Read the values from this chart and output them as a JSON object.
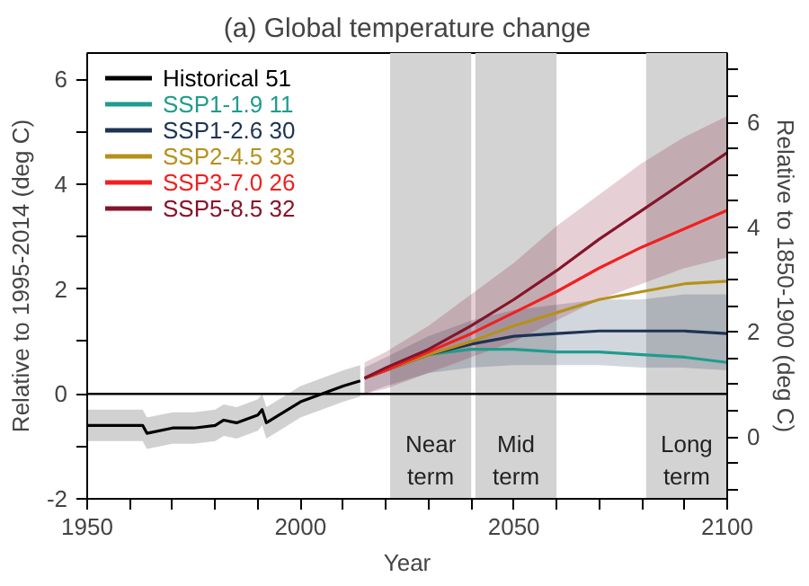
{
  "chart_data": {
    "type": "line",
    "title": "(a) Global temperature change",
    "xlabel": "Year",
    "ylabel": "Relative to 1995-2014 (deg C)",
    "y2label": "Relative to 1850-1900 (deg C)",
    "xlim": [
      1950,
      2100
    ],
    "xticks": [
      1950,
      {
        "value": 1960,
        "label": null
      },
      {
        "value": 1970,
        "label": null
      },
      {
        "value": 1980,
        "label": null
      },
      {
        "value": 1990,
        "label": null
      },
      2000,
      {
        "value": 2010,
        "label": null
      },
      {
        "value": 2020,
        "label": null
      },
      {
        "value": 2030,
        "label": null
      },
      {
        "value": 2040,
        "label": null
      },
      2050,
      {
        "value": 2060,
        "label": null
      },
      {
        "value": 2070,
        "label": null
      },
      {
        "value": 2080,
        "label": null
      },
      {
        "value": 2090,
        "label": null
      },
      2100
    ],
    "ylim": [
      -2,
      6.5
    ],
    "yticks": [
      -2,
      {
        "value": -1,
        "label": null
      },
      0,
      {
        "value": 1,
        "label": null
      },
      2,
      {
        "value": 3,
        "label": null
      },
      4,
      {
        "value": 5,
        "label": null
      },
      6
    ],
    "y2lim": [
      -1.18,
      7.32
    ],
    "y2ticks": [
      {
        "value": -1,
        "label": null
      },
      {
        "value": -0.5,
        "label": null
      },
      0,
      {
        "value": 0.5,
        "label": null
      },
      {
        "value": 1,
        "label": null
      },
      {
        "value": 1.5,
        "label": null
      },
      2,
      {
        "value": 2.5,
        "label": null
      },
      {
        "value": 3,
        "label": null
      },
      {
        "value": 3.5,
        "label": null
      },
      4,
      {
        "value": 4.5,
        "label": null
      },
      {
        "value": 5,
        "label": null
      },
      {
        "value": 5.5,
        "label": null
      },
      6,
      {
        "value": 6.5,
        "label": null
      },
      {
        "value": 7,
        "label": null
      }
    ],
    "grid": false,
    "legend": "top left",
    "line_style": "solid",
    "marker": "none",
    "ref_lines": [
      {
        "axis": "y",
        "value": 0,
        "label": null,
        "color": "#000000"
      }
    ],
    "bands": [
      {
        "axis": "x",
        "from": 2021,
        "to": 2040,
        "label": "Near\nterm",
        "color": "#d3d3d3"
      },
      {
        "axis": "x",
        "from": 2041,
        "to": 2060,
        "label": "Mid\nterm",
        "color": "#d3d3d3"
      },
      {
        "axis": "x",
        "from": 2081,
        "to": 2100,
        "label": "Long\nterm",
        "color": "#d3d3d3"
      }
    ],
    "series": [
      {
        "name": "Historical 51",
        "color": "#000000",
        "x": [
          1950,
          1955,
          1960,
          1963,
          1964,
          1970,
          1975,
          1980,
          1982,
          1985,
          1990,
          1991,
          1992,
          1995,
          2000,
          2005,
          2010,
          2014
        ],
        "values": [
          -0.6,
          -0.6,
          -0.6,
          -0.6,
          -0.75,
          -0.65,
          -0.65,
          -0.6,
          -0.5,
          -0.55,
          -0.4,
          -0.3,
          -0.55,
          -0.4,
          -0.15,
          0.0,
          0.15,
          0.25
        ],
        "lower": [
          -0.9,
          -0.9,
          -0.9,
          -0.9,
          -1.05,
          -0.95,
          -0.95,
          -0.9,
          -0.8,
          -0.85,
          -0.7,
          -0.6,
          -0.85,
          -0.7,
          -0.45,
          -0.3,
          -0.15,
          -0.05
        ],
        "upper": [
          -0.3,
          -0.3,
          -0.3,
          -0.3,
          -0.45,
          -0.35,
          -0.35,
          -0.3,
          -0.2,
          -0.25,
          -0.1,
          0.0,
          -0.25,
          -0.1,
          0.15,
          0.3,
          0.45,
          0.55
        ]
      },
      {
        "name": "SSP1-1.9 11",
        "color": "#1f9c8c",
        "x": [
          2015,
          2020,
          2030,
          2040,
          2050,
          2060,
          2070,
          2080,
          2090,
          2100
        ],
        "values": [
          0.3,
          0.45,
          0.75,
          0.85,
          0.85,
          0.8,
          0.8,
          0.75,
          0.7,
          0.6
        ]
      },
      {
        "name": "SSP1-2.6 30",
        "color": "#1d3354",
        "x": [
          2015,
          2020,
          2030,
          2040,
          2050,
          2060,
          2070,
          2080,
          2090,
          2100
        ],
        "values": [
          0.3,
          0.45,
          0.75,
          0.95,
          1.1,
          1.15,
          1.2,
          1.2,
          1.2,
          1.15
        ],
        "lower": [
          0.0,
          0.15,
          0.4,
          0.5,
          0.55,
          0.55,
          0.55,
          0.5,
          0.5,
          0.45
        ],
        "upper": [
          0.5,
          0.7,
          1.1,
          1.4,
          1.6,
          1.7,
          1.8,
          1.8,
          1.9,
          1.9
        ]
      },
      {
        "name": "SSP2-4.5 33",
        "color": "#b5911a",
        "x": [
          2015,
          2020,
          2030,
          2040,
          2050,
          2060,
          2070,
          2080,
          2090,
          2100
        ],
        "values": [
          0.3,
          0.45,
          0.75,
          1.0,
          1.3,
          1.55,
          1.8,
          1.95,
          2.1,
          2.15
        ]
      },
      {
        "name": "SSP3-7.0 26",
        "color": "#f02020",
        "x": [
          2015,
          2020,
          2030,
          2040,
          2050,
          2060,
          2070,
          2080,
          2090,
          2100
        ],
        "values": [
          0.3,
          0.45,
          0.8,
          1.15,
          1.55,
          1.95,
          2.4,
          2.8,
          3.15,
          3.5
        ]
      },
      {
        "name": "SSP5-8.5 32",
        "color": "#85142b",
        "x": [
          2015,
          2020,
          2030,
          2040,
          2050,
          2060,
          2070,
          2080,
          2090,
          2100
        ],
        "values": [
          0.3,
          0.5,
          0.85,
          1.3,
          1.8,
          2.35,
          2.95,
          3.5,
          4.05,
          4.6
        ],
        "lower": [
          0.0,
          0.1,
          0.4,
          0.7,
          1.0,
          1.4,
          1.8,
          2.1,
          2.4,
          2.6
        ],
        "upper": [
          0.6,
          0.8,
          1.3,
          1.9,
          2.5,
          3.2,
          3.8,
          4.4,
          4.9,
          5.3
        ]
      }
    ]
  }
}
